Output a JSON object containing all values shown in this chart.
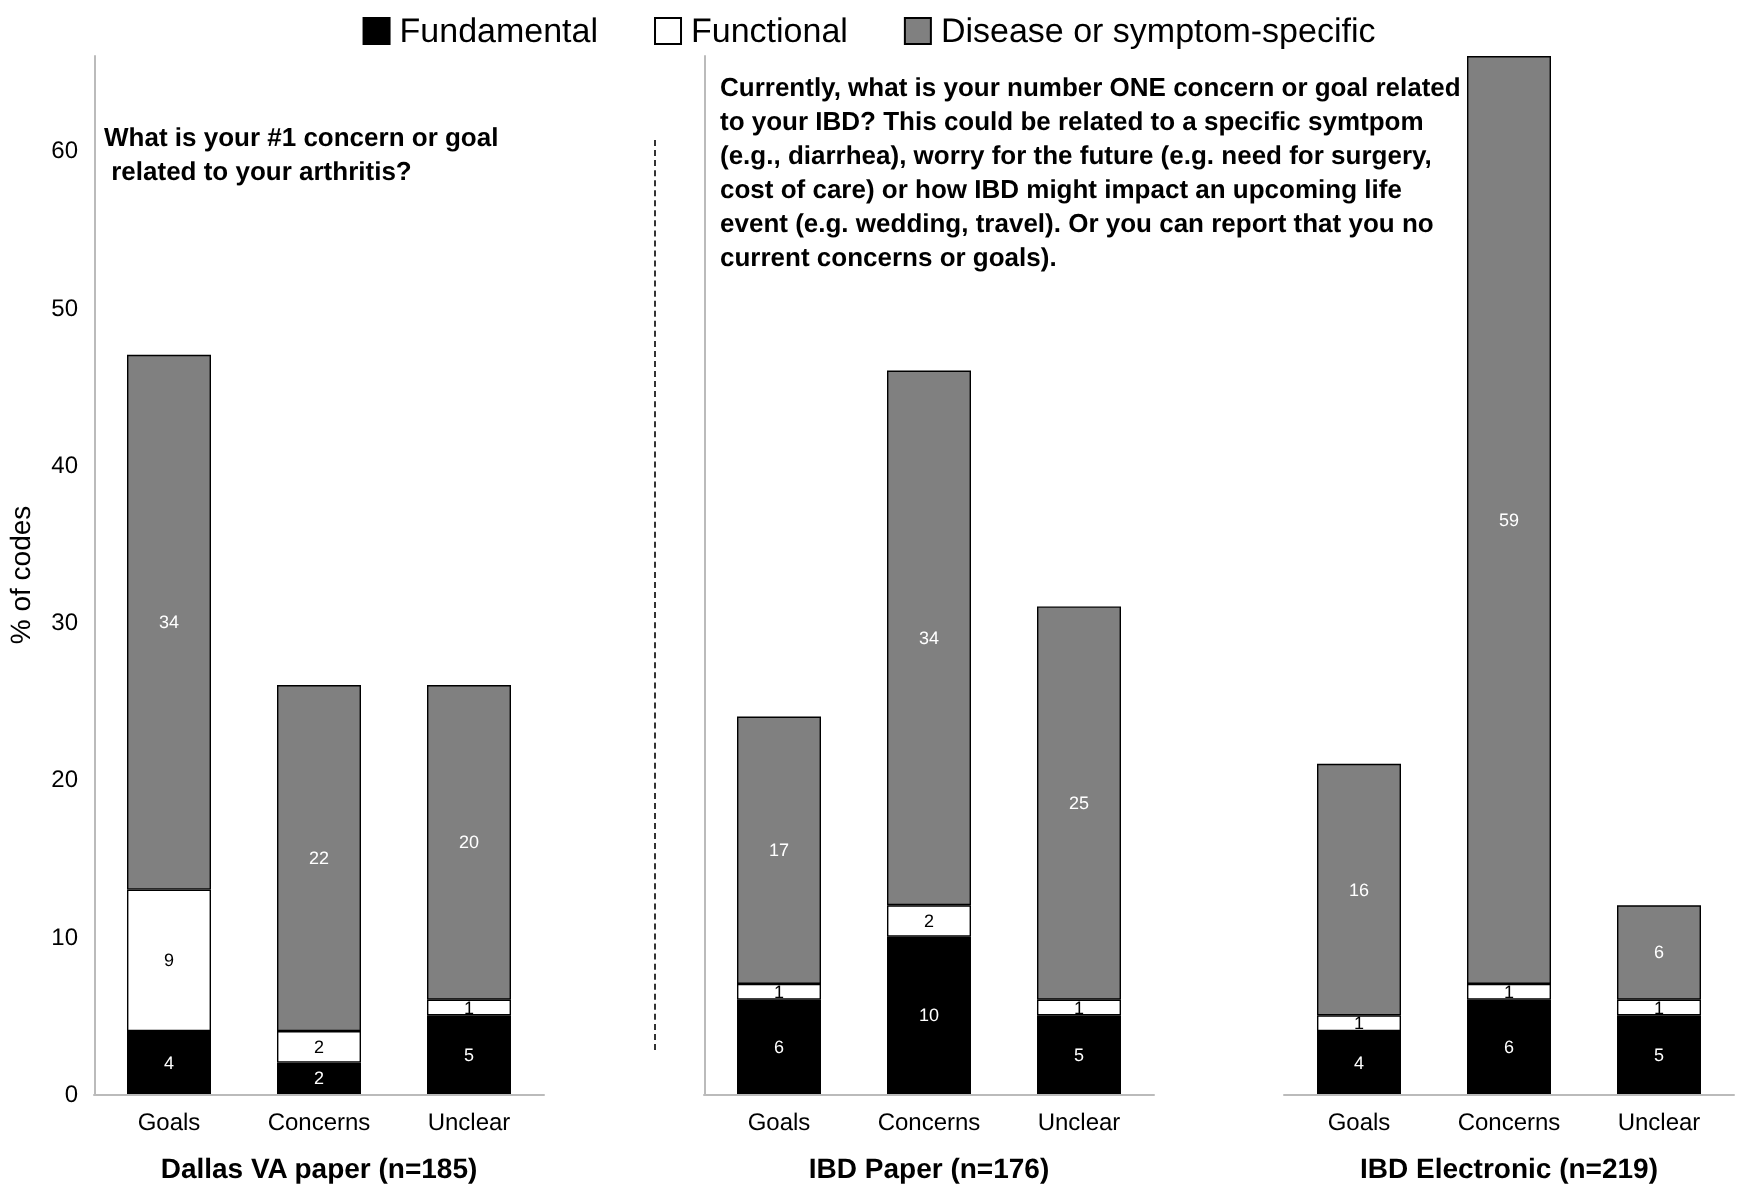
{
  "chart_data": [
    {
      "type": "bar",
      "stacked": true,
      "categories": [
        "Goals",
        "Concerns",
        "Unclear"
      ],
      "xlabel": "Dallas VA paper (n=185)",
      "ylabel": "% of codes",
      "ylim": [
        0,
        66
      ],
      "yticks": [
        0,
        10,
        20,
        30,
        40,
        50,
        60
      ],
      "data_labels": true,
      "annotations": [
        "What is your #1 concern or goal related to your arthritis?"
      ],
      "series": [
        {
          "color": "#000000",
          "values": [
            4,
            2,
            5
          ]
        },
        {
          "color": "#ffffff",
          "values": [
            9,
            2,
            1
          ]
        },
        {
          "color": "#808080",
          "values": [
            34,
            22,
            20
          ]
        }
      ]
    },
    {
      "type": "bar",
      "stacked": true,
      "categories": [
        "Goals",
        "Concerns",
        "Unclear"
      ],
      "xlabel": "IBD Paper (n=176)",
      "ylim": [
        0,
        66
      ],
      "tick_labels": "x",
      "data_labels": true,
      "legend": "top",
      "annotations": [
        "Currently, what is your number ONE concern or goal related to your IBD? This could be related to a specific symtpom (e.g., diarrhea), worry for the future (e.g. need for surgery, cost of care) or how IBD might impact an upcoming life event (e.g. wedding, travel). Or you can report that you no current concerns or goals)."
      ],
      "series": [
        {
          "name": "Fundamental",
          "color": "#000000",
          "values": [
            6,
            10,
            5
          ]
        },
        {
          "name": "Functional",
          "color": "#ffffff",
          "values": [
            1,
            2,
            1
          ]
        },
        {
          "name": "Disease or symptom-specific",
          "color": "#808080",
          "values": [
            17,
            34,
            25
          ]
        }
      ]
    },
    {
      "type": "bar",
      "stacked": true,
      "categories": [
        "Goals",
        "Concerns",
        "Unclear"
      ],
      "xlabel": "IBD Electronic (n=219)",
      "ylim": [
        0,
        66
      ],
      "tick_labels": "x",
      "data_labels": true,
      "series": [
        {
          "color": "#000000",
          "values": [
            4,
            6,
            5
          ]
        },
        {
          "color": "#ffffff",
          "values": [
            1,
            1,
            1
          ]
        },
        {
          "color": "#808080",
          "values": [
            16,
            59,
            6
          ]
        }
      ]
    }
  ]
}
